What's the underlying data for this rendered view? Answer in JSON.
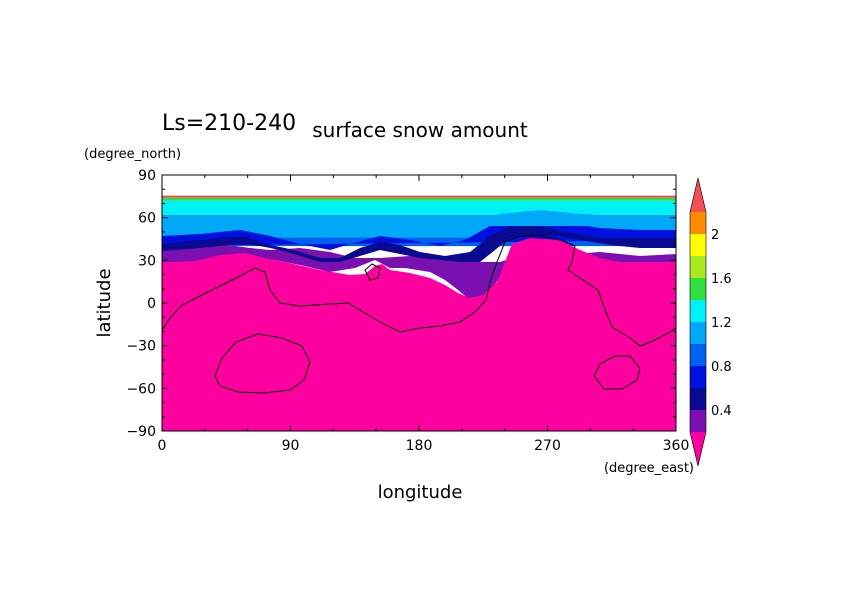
{
  "chart_data": {
    "type": "heatmap",
    "title": "surface snow amount",
    "subtitle": "Ls=210-240",
    "xlabel": "longitude",
    "ylabel": "latitude",
    "x_unit": "(degree_east)",
    "y_unit": "(degree_north)",
    "xlim": [
      0,
      360
    ],
    "ylim": [
      -90,
      90
    ],
    "xticks": [
      "0",
      "90",
      "180",
      "270",
      "360"
    ],
    "yticks": [
      "90",
      "60",
      "30",
      "0",
      "-30",
      "-60",
      "-90"
    ],
    "colorbar": {
      "levels": [
        0.2,
        0.4,
        0.6,
        0.8,
        1.0,
        1.2,
        1.4,
        1.6,
        1.8,
        2.0,
        2.2
      ],
      "tick_labels": [
        "0.4",
        "0.8",
        "1.2",
        "1.6",
        "2"
      ],
      "colors": [
        "#ff00a0",
        "#7a10b0",
        "#0a0a90",
        "#0010e0",
        "#0060f0",
        "#00a8f8",
        "#00f0f8",
        "#30e040",
        "#a8ea20",
        "#ffff00",
        "#ff8c00",
        "#f05050"
      ],
      "extend": "both"
    },
    "zonal_bands": [
      {
        "lat_min": -90,
        "lat_max": 30,
        "level": "<0.2"
      },
      {
        "lat_min": 30,
        "lat_max": 45,
        "level": "0.2-1.0"
      },
      {
        "lat_min": 45,
        "lat_max": 62,
        "level": "1.0-1.2"
      },
      {
        "lat_min": 62,
        "lat_max": 72,
        "level": "1.2-1.4"
      },
      {
        "lat_min": 72,
        "lat_max": 74,
        "level": "1.4-1.6"
      },
      {
        "lat_min": 74,
        "lat_max": 75,
        "level": ">2.2"
      }
    ]
  }
}
